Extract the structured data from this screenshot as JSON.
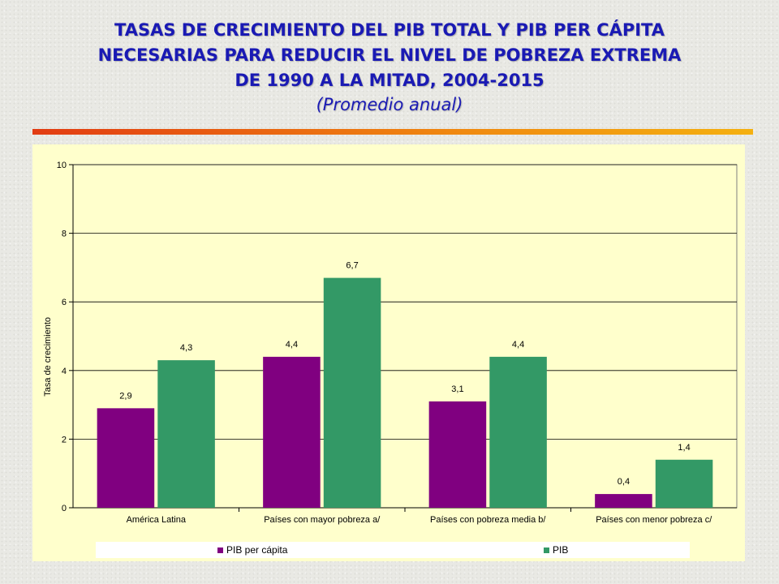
{
  "title": {
    "line1": "TASAS DE CRECIMIENTO DEL PIB TOTAL Y  PIB PER CÁPITA",
    "line2": "NECESARIAS PARA REDUCIR EL NIVEL DE POBREZA EXTREMA",
    "line3": "DE 1990 A LA MITAD, 2004-2015",
    "subtitle": "(Promedio anual)"
  },
  "colors": {
    "title": "#1a1ab4",
    "pib_per_capita": "#800080",
    "pib": "#339966",
    "panel": "#ffffcc"
  },
  "chart_data": {
    "type": "bar",
    "categories": [
      "América Latina",
      "Países con mayor pobreza a/",
      "Países con pobreza media b/",
      "Países con menor pobreza c/"
    ],
    "series": [
      {
        "name": "PIB per cápita",
        "color": "#800080",
        "values": [
          2.9,
          4.4,
          3.1,
          0.4
        ],
        "labels": [
          "2,9",
          "4,4",
          "3,1",
          "0,4"
        ]
      },
      {
        "name": "PIB",
        "color": "#339966",
        "values": [
          4.3,
          6.7,
          4.4,
          1.4
        ],
        "labels": [
          "4,3",
          "6,7",
          "4,4",
          "1,4"
        ]
      }
    ],
    "ylabel": "Tasa de crecimiento",
    "ylim": [
      0,
      10
    ],
    "yticks": [
      0,
      2,
      4,
      6,
      8,
      10
    ],
    "grid": true,
    "legend": "bottom"
  }
}
